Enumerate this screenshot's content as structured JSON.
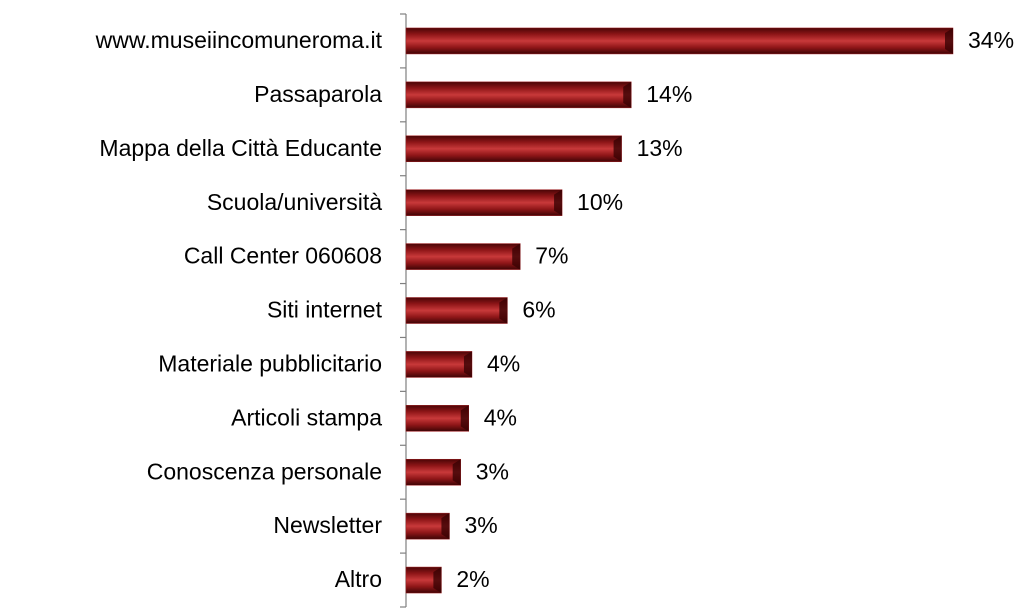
{
  "chart_data": {
    "type": "barh",
    "categories": [
      "www.museiincomuneroma.it",
      "Passaparola",
      "Mappa della Città Educante",
      "Scuola/università",
      "Call Center 060608",
      "Siti internet",
      "Materiale pubblicitario",
      "Articoli stampa",
      "Conoscenza personale",
      "Newsletter",
      "Altro"
    ],
    "values": [
      34,
      14,
      13.4,
      9.7,
      7.1,
      6.3,
      4.1,
      3.9,
      3.4,
      2.7,
      2.2
    ],
    "value_labels": [
      "34%",
      "14%",
      "13%",
      "10%",
      "7%",
      "6%",
      "4%",
      "4%",
      "3%",
      "3%",
      "2%"
    ],
    "color": "#a01c1e"
  }
}
